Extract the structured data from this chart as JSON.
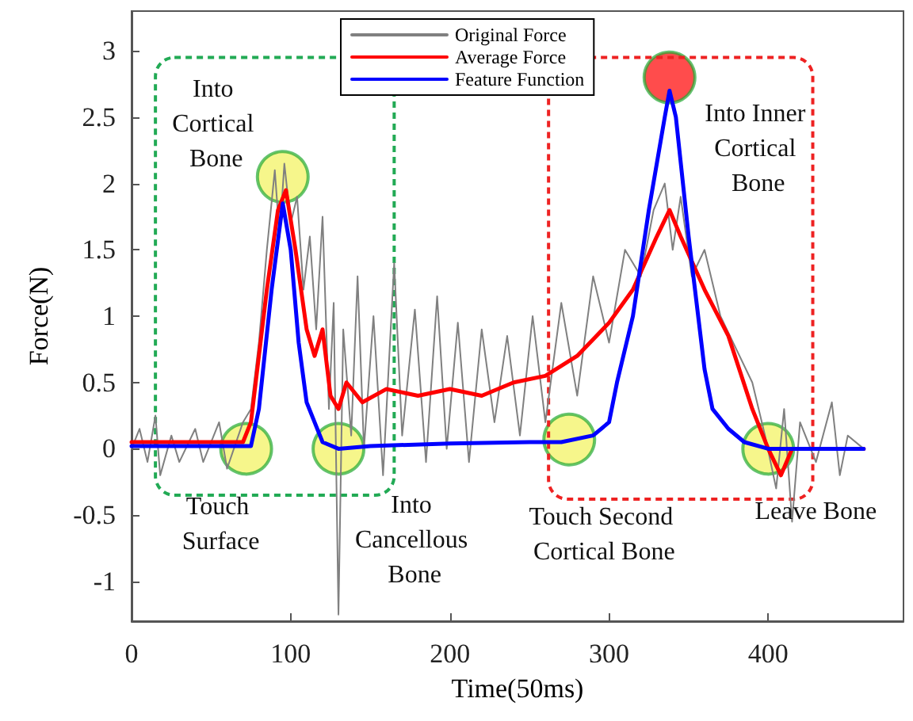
{
  "chart_data": {
    "type": "line",
    "xlabel": "Time(50ms)",
    "ylabel": "Force(N)",
    "xlim": [
      0,
      485
    ],
    "ylim": [
      -1.3,
      3.3
    ],
    "xticks": [
      0,
      100,
      200,
      300,
      400
    ],
    "yticks": [
      -1,
      -0.5,
      0,
      0.5,
      1,
      1.5,
      2,
      2.5,
      3
    ],
    "grid": false,
    "legend": "top",
    "line_style": "solid",
    "marker": "none",
    "series": [
      {
        "name": "Original Force",
        "color": "#808080",
        "x": [
          0,
          5,
          10,
          15,
          18,
          25,
          30,
          40,
          45,
          55,
          60,
          70,
          75,
          80,
          85,
          90,
          93,
          96,
          100,
          104,
          108,
          112,
          116,
          120,
          124,
          127,
          130,
          133,
          138,
          142,
          146,
          152,
          158,
          165,
          170,
          178,
          185,
          192,
          198,
          205,
          212,
          220,
          228,
          236,
          244,
          252,
          260,
          270,
          280,
          290,
          300,
          310,
          320,
          328,
          335,
          340,
          345,
          352,
          360,
          370,
          380,
          390,
          398,
          405,
          410,
          415,
          420,
          430,
          440,
          445,
          450,
          460
        ],
        "values": [
          0,
          0.15,
          -0.1,
          0.25,
          -0.2,
          0.1,
          -0.1,
          0.15,
          -0.1,
          0.2,
          -0.15,
          0.2,
          0.3,
          0.8,
          1.5,
          2.1,
          1.6,
          2.15,
          1.7,
          1.9,
          1.2,
          1.6,
          0.9,
          1.75,
          0.3,
          1.1,
          -1.25,
          0.9,
          0.1,
          1.3,
          0,
          1,
          -0.2,
          1.4,
          0.1,
          1.05,
          -0.1,
          1.15,
          0,
          0.95,
          -0.1,
          0.9,
          0.2,
          0.85,
          0.1,
          1,
          0.2,
          1.1,
          0.4,
          1.3,
          0.8,
          1.5,
          1.3,
          1.8,
          2,
          1.5,
          1.9,
          1.3,
          1.5,
          1,
          0.75,
          0.5,
          0.1,
          -0.3,
          0.3,
          -0.55,
          0.2,
          -0.1,
          0.35,
          -0.2,
          0.1,
          0
        ]
      },
      {
        "name": "Average Force",
        "color": "#ff0000",
        "x": [
          0,
          70,
          75,
          85,
          92,
          97,
          103,
          110,
          115,
          120,
          125,
          130,
          135,
          145,
          160,
          180,
          200,
          220,
          240,
          260,
          280,
          300,
          315,
          330,
          338,
          345,
          360,
          375,
          390,
          400,
          408,
          415,
          460
        ],
        "values": [
          0.05,
          0.05,
          0.2,
          1.2,
          1.8,
          1.95,
          1.5,
          0.9,
          0.7,
          0.9,
          0.4,
          0.3,
          0.5,
          0.35,
          0.45,
          0.4,
          0.45,
          0.4,
          0.5,
          0.55,
          0.7,
          0.95,
          1.2,
          1.6,
          1.8,
          1.6,
          1.2,
          0.85,
          0.3,
          0,
          -0.2,
          0,
          0
        ]
      },
      {
        "name": "Feature Function",
        "color": "#0000ff",
        "x": [
          0,
          75,
          80,
          88,
          95,
          100,
          105,
          110,
          115,
          120,
          130,
          150,
          200,
          250,
          270,
          290,
          300,
          305,
          315,
          325,
          335,
          338,
          342,
          350,
          360,
          365,
          375,
          385,
          400,
          460
        ],
        "values": [
          0.02,
          0.02,
          0.3,
          1.2,
          1.85,
          1.5,
          0.8,
          0.35,
          0.2,
          0.05,
          0,
          0.02,
          0.04,
          0.05,
          0.05,
          0.1,
          0.2,
          0.5,
          1,
          1.8,
          2.5,
          2.7,
          2.5,
          1.6,
          0.6,
          0.3,
          0.15,
          0.05,
          0,
          0
        ]
      }
    ],
    "annotations": [
      {
        "text": "Touch Surface",
        "x": 72,
        "y": 0
      },
      {
        "text": "Into Cortical Bone",
        "x": 95,
        "y": 2.05
      },
      {
        "text": "Into Cancellous Bone",
        "x": 130,
        "y": 0
      },
      {
        "text": "Touch Second Cortical Bone",
        "x": 275,
        "y": 0.07
      },
      {
        "text": "Into Inner Cortical Bone",
        "x": 338,
        "y": 2.8
      },
      {
        "text": "Leave Bone",
        "x": 400,
        "y": 0
      }
    ]
  }
}
